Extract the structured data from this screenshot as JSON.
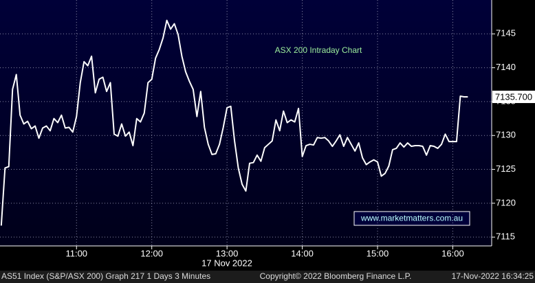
{
  "chart_data": {
    "type": "line",
    "annotation": "ASX 200 Intraday Chart",
    "watermark": "www.marketmatters.com.au",
    "x_sublabel": "17 Nov 2022",
    "last_price": "7135.700",
    "footer": [
      "AS51 Index (S&P/ASX 200) Graph 217 1 Days 3 Minutes",
      "Copyright© 2022 Bloomberg Finance L.P.",
      "17-Nov-2022 16:34:25"
    ],
    "x": [
      0,
      3,
      6,
      9,
      12,
      15,
      18,
      21,
      24,
      27,
      30,
      33,
      36,
      39,
      42,
      45,
      48,
      51,
      54,
      57,
      60,
      63,
      66,
      69,
      72,
      75,
      78,
      81,
      84,
      87,
      90,
      93,
      96,
      99,
      102,
      105,
      108,
      111,
      114,
      117,
      120,
      123,
      126,
      129,
      132,
      135,
      138,
      141,
      144,
      147,
      150,
      153,
      156,
      159,
      162,
      165,
      168,
      171,
      174,
      177,
      180,
      183,
      186,
      189,
      192,
      195,
      198,
      201,
      204,
      207,
      210,
      213,
      216,
      219,
      222,
      225,
      228,
      231,
      234,
      237,
      240,
      243,
      246,
      249,
      252,
      255,
      258,
      261,
      264,
      267,
      270,
      273,
      276,
      279,
      282,
      285,
      288,
      291,
      294,
      297,
      300,
      303,
      306,
      309,
      312,
      315,
      318,
      321,
      324,
      327,
      330,
      333,
      336,
      339,
      342,
      345,
      348,
      351,
      354,
      357,
      360,
      363,
      366,
      369,
      372
    ],
    "series": [
      {
        "name": "AS51 Index",
        "color": "#ffffff",
        "values": [
          7116.7,
          7125.2,
          7125.4,
          7136.8,
          7139.0,
          7133.0,
          7131.7,
          7132.1,
          7131.0,
          7131.4,
          7129.6,
          7131.1,
          7131.4,
          7130.7,
          7132.5,
          7131.9,
          7133.0,
          7131.1,
          7131.2,
          7130.5,
          7132.8,
          7137.8,
          7140.9,
          7140.3,
          7141.7,
          7136.3,
          7138.3,
          7138.6,
          7136.5,
          7137.8,
          7130.2,
          7129.9,
          7131.7,
          7129.9,
          7130.5,
          7128.5,
          7132.5,
          7132.0,
          7133.3,
          7137.8,
          7138.3,
          7141.4,
          7142.7,
          7144.4,
          7147.0,
          7145.7,
          7146.5,
          7144.9,
          7141.7,
          7139.4,
          7138.0,
          7136.8,
          7132.8,
          7136.5,
          7131.2,
          7128.7,
          7127.2,
          7127.3,
          7128.7,
          7131.2,
          7134.1,
          7134.3,
          7129.2,
          7125.2,
          7122.8,
          7121.8,
          7125.9,
          7126.0,
          7127.1,
          7126.2,
          7128.2,
          7128.7,
          7129.2,
          7132.3,
          7130.7,
          7133.6,
          7131.9,
          7132.3,
          7132.0,
          7134.0,
          7126.9,
          7128.5,
          7128.7,
          7128.6,
          7129.7,
          7129.6,
          7129.7,
          7129.2,
          7128.4,
          7129.2,
          7130.1,
          7128.4,
          7129.7,
          7128.7,
          7127.7,
          7128.9,
          7126.7,
          7125.7,
          7126.1,
          7126.4,
          7126.1,
          7124.0,
          7124.4,
          7125.5,
          7127.9,
          7128.1,
          7128.9,
          7128.3,
          7128.9,
          7128.4,
          7128.5,
          7128.5,
          7128.4,
          7127.1,
          7128.5,
          7128.4,
          7128.1,
          7128.7,
          7130.2,
          7129.1,
          7129.1,
          7129.1,
          7135.8,
          7135.7,
          7135.7
        ]
      }
    ],
    "xlim": [
      -1,
      391
    ],
    "xticks": [
      {
        "value": 60,
        "label": "11:00"
      },
      {
        "value": 120,
        "label": "12:00"
      },
      {
        "value": 180,
        "label": "13:00"
      },
      {
        "value": 240,
        "label": "14:00"
      },
      {
        "value": 300,
        "label": "15:00"
      },
      {
        "value": 360,
        "label": "16:00"
      }
    ],
    "ylim": [
      7113.7,
      7150
    ],
    "yticks": [
      7115,
      7120,
      7125,
      7130,
      7135,
      7140,
      7145
    ],
    "grid": true
  }
}
